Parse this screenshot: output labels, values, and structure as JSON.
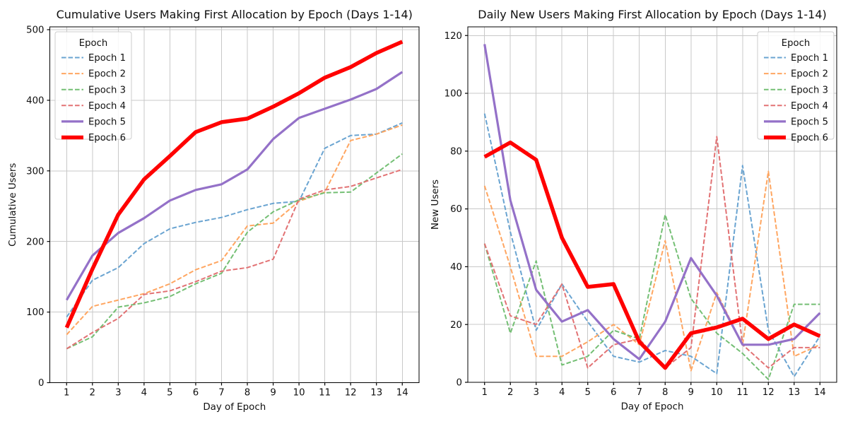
{
  "figure": {
    "background": "#ffffff",
    "grid_color": "#c8c8c8",
    "spine_color": "#000000"
  },
  "chart_data": [
    {
      "type": "line",
      "title": "Cumulative Users Making First Allocation by Epoch (Days 1-14)",
      "xlabel": "Day of Epoch",
      "ylabel": "Cumulative Users",
      "x": [
        1,
        2,
        3,
        4,
        5,
        6,
        7,
        8,
        9,
        10,
        11,
        12,
        13,
        14
      ],
      "xlim": [
        0.35,
        14.65
      ],
      "ylim": [
        0,
        504
      ],
      "yticks": [
        0,
        100,
        200,
        300,
        400,
        500
      ],
      "grid": true,
      "legend": {
        "title": "Epoch",
        "position": "upper-left"
      },
      "series": [
        {
          "name": "Epoch 1",
          "color": "#6aa4d1",
          "style": "dashed",
          "width": 2,
          "values": [
            93,
            145,
            163,
            197,
            218,
            227,
            234,
            245,
            254,
            257,
            332,
            350,
            352,
            368
          ]
        },
        {
          "name": "Epoch 2",
          "color": "#ffa661",
          "style": "dashed",
          "width": 2,
          "values": [
            68,
            108,
            117,
            126,
            140,
            160,
            173,
            222,
            226,
            257,
            270,
            343,
            352,
            365
          ]
        },
        {
          "name": "Epoch 3",
          "color": "#74bf74",
          "style": "dashed",
          "width": 2,
          "values": [
            48,
            65,
            107,
            113,
            122,
            140,
            155,
            213,
            242,
            259,
            269,
            270,
            297,
            324
          ]
        },
        {
          "name": "Epoch 4",
          "color": "#e27274",
          "style": "dashed",
          "width": 2,
          "values": [
            48,
            71,
            91,
            125,
            130,
            143,
            158,
            163,
            175,
            260,
            273,
            278,
            290,
            302
          ]
        },
        {
          "name": "Epoch 5",
          "color": "#9471c8",
          "style": "solid",
          "width": 3.2,
          "values": [
            117,
            180,
            212,
            233,
            258,
            273,
            281,
            302,
            345,
            375,
            388,
            401,
            416,
            440
          ]
        },
        {
          "name": "Epoch 6",
          "color": "#ff0000",
          "style": "solid",
          "width": 5.5,
          "values": [
            78,
            161,
            238,
            288,
            321,
            355,
            369,
            374,
            391,
            410,
            432,
            447,
            467,
            483
          ]
        }
      ]
    },
    {
      "type": "line",
      "title": "Daily New Users Making First Allocation by Epoch (Days 1-14)",
      "xlabel": "Day of Epoch",
      "ylabel": "New Users",
      "x": [
        1,
        2,
        3,
        4,
        5,
        6,
        7,
        8,
        9,
        10,
        11,
        12,
        13,
        14
      ],
      "xlim": [
        0.35,
        14.65
      ],
      "ylim": [
        0,
        123
      ],
      "yticks": [
        0,
        20,
        40,
        60,
        80,
        100,
        120
      ],
      "grid": true,
      "legend": {
        "title": "Epoch",
        "position": "upper-right"
      },
      "series": [
        {
          "name": "Epoch 1",
          "color": "#6aa4d1",
          "style": "dashed",
          "width": 2,
          "values": [
            93,
            52,
            18,
            34,
            21,
            9,
            7,
            11,
            9,
            3,
            75,
            18,
            2,
            16
          ]
        },
        {
          "name": "Epoch 2",
          "color": "#ffa661",
          "style": "dashed",
          "width": 2,
          "values": [
            68,
            40,
            9,
            9,
            14,
            20,
            13,
            49,
            4,
            31,
            13,
            73,
            9,
            13
          ]
        },
        {
          "name": "Epoch 3",
          "color": "#74bf74",
          "style": "dashed",
          "width": 2,
          "values": [
            48,
            17,
            42,
            6,
            9,
            18,
            15,
            58,
            29,
            17,
            10,
            1,
            27,
            27
          ]
        },
        {
          "name": "Epoch 4",
          "color": "#e27274",
          "style": "dashed",
          "width": 2,
          "values": [
            48,
            23,
            20,
            34,
            5,
            13,
            15,
            5,
            12,
            85,
            13,
            5,
            12,
            12
          ]
        },
        {
          "name": "Epoch 5",
          "color": "#9471c8",
          "style": "solid",
          "width": 3.2,
          "values": [
            117,
            63,
            32,
            21,
            25,
            15,
            8,
            21,
            43,
            30,
            13,
            13,
            15,
            24
          ]
        },
        {
          "name": "Epoch 6",
          "color": "#ff0000",
          "style": "solid",
          "width": 5.5,
          "values": [
            78,
            83,
            77,
            50,
            33,
            34,
            14,
            5,
            17,
            19,
            22,
            15,
            20,
            16
          ]
        }
      ]
    }
  ]
}
